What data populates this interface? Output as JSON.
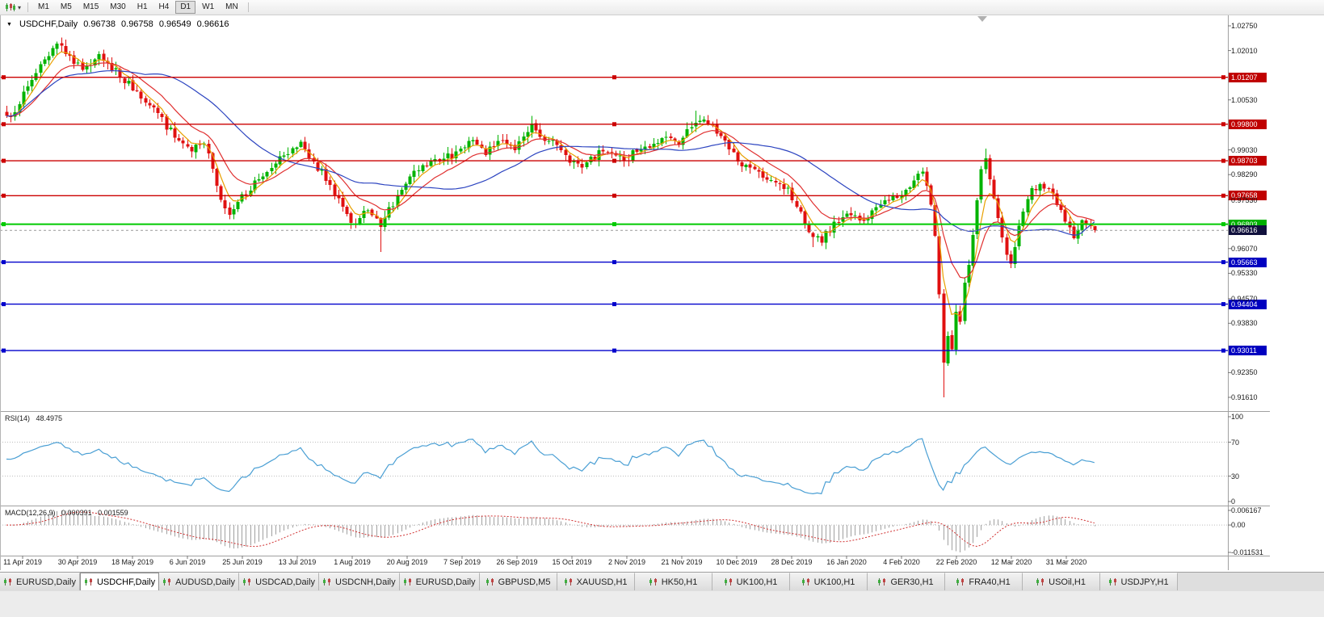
{
  "toolbar": {
    "timeframes": [
      "M1",
      "M5",
      "M15",
      "M30",
      "H1",
      "H4",
      "D1",
      "W1",
      "MN"
    ],
    "active_timeframe": "D1"
  },
  "chart": {
    "title_symbol": "USDCHF,Daily",
    "ohlc": {
      "open": "0.96738",
      "high": "0.96758",
      "low": "0.96549",
      "close": "0.96616"
    },
    "price_scale": {
      "min": 0.9127,
      "max": 1.0292,
      "ticks": [
        {
          "label": "1.02750",
          "value": 1.0275
        },
        {
          "label": "1.02010",
          "value": 1.0201
        },
        {
          "label": "1.00530",
          "value": 1.0053
        },
        {
          "label": "0.99030",
          "value": 0.9903
        },
        {
          "label": "0.98290",
          "value": 0.9829
        },
        {
          "label": "0.97530",
          "value": 0.9753
        },
        {
          "label": "0.96070",
          "value": 0.9607
        },
        {
          "label": "0.95330",
          "value": 0.9533
        },
        {
          "label": "0.94570",
          "value": 0.9457
        },
        {
          "label": "0.93830",
          "value": 0.9383
        },
        {
          "label": "0.92350",
          "value": 0.9235
        },
        {
          "label": "0.91610",
          "value": 0.9161
        }
      ]
    },
    "hlines": [
      {
        "label": "1.01207",
        "value": 1.01207,
        "color": "red"
      },
      {
        "label": "0.99800",
        "value": 0.998,
        "color": "red"
      },
      {
        "label": "0.98703",
        "value": 0.98703,
        "color": "red"
      },
      {
        "label": "0.97658",
        "value": 0.97658,
        "color": "red"
      },
      {
        "label": "0.96803",
        "value": 0.96803,
        "color": "green"
      },
      {
        "label": "0.95663",
        "value": 0.95663,
        "color": "blue"
      },
      {
        "label": "0.94404",
        "value": 0.94404,
        "color": "blue"
      },
      {
        "label": "0.93011",
        "value": 0.93011,
        "color": "blue"
      }
    ],
    "current_price": {
      "label": "0.96616",
      "value": 0.96616
    },
    "date_labels": [
      "11 Apr 2019",
      "30 Apr 2019",
      "18 May 2019",
      "6 Jun 2019",
      "25 Jun 2019",
      "13 Jul 2019",
      "1 Aug 2019",
      "20 Aug 2019",
      "7 Sep 2019",
      "26 Sep 2019",
      "15 Oct 2019",
      "2 Nov 2019",
      "21 Nov 2019",
      "10 Dec 2019",
      "28 Dec 2019",
      "16 Jan 2020",
      "4 Feb 2020",
      "22 Feb 2020",
      "12 Mar 2020",
      "31 Mar 2020"
    ],
    "series": {
      "candle_count": 260,
      "keypoints": [
        [
          0,
          1.0005
        ],
        [
          3,
          1.004
        ],
        [
          8,
          1.016
        ],
        [
          12,
          1.0222
        ],
        [
          15,
          1.0185
        ],
        [
          18,
          1.0143
        ],
        [
          22,
          1.019
        ],
        [
          27,
          1.012
        ],
        [
          31,
          1.008
        ],
        [
          35,
          1.003
        ],
        [
          40,
          0.994
        ],
        [
          44,
          0.9898
        ],
        [
          47,
          0.9923
        ],
        [
          50,
          0.9795
        ],
        [
          53,
          0.9708
        ],
        [
          56,
          0.977
        ],
        [
          60,
          0.9815
        ],
        [
          64,
          0.9862
        ],
        [
          67,
          0.989
        ],
        [
          70,
          0.9928
        ],
        [
          73,
          0.9868
        ],
        [
          77,
          0.9798
        ],
        [
          80,
          0.9732
        ],
        [
          83,
          0.968
        ],
        [
          86,
          0.9722
        ],
        [
          89,
          0.9672
        ],
        [
          93,
          0.9768
        ],
        [
          98,
          0.9842
        ],
        [
          103,
          0.9868
        ],
        [
          107,
          0.9898
        ],
        [
          111,
          0.9932
        ],
        [
          114,
          0.9888
        ],
        [
          118,
          0.9932
        ],
        [
          121,
          0.9902
        ],
        [
          125,
          0.9982
        ],
        [
          129,
          0.993
        ],
        [
          133,
          0.9888
        ],
        [
          137,
          0.985
        ],
        [
          142,
          0.9898
        ],
        [
          147,
          0.9872
        ],
        [
          151,
          0.9905
        ],
        [
          156,
          0.9938
        ],
        [
          160,
          0.9918
        ],
        [
          164,
          0.9985
        ],
        [
          168,
          0.9978
        ],
        [
          172,
          0.9905
        ],
        [
          174,
          0.9868
        ],
        [
          178,
          0.9845
        ],
        [
          182,
          0.9812
        ],
        [
          186,
          0.979
        ],
        [
          189,
          0.9718
        ],
        [
          192,
          0.9642
        ],
        [
          194,
          0.9625
        ],
        [
          197,
          0.9688
        ],
        [
          200,
          0.9712
        ],
        [
          204,
          0.969
        ],
        [
          208,
          0.9738
        ],
        [
          213,
          0.9768
        ],
        [
          218,
          0.9838
        ],
        [
          219,
          0.9795
        ],
        [
          220,
          0.9738
        ],
        [
          221,
          0.9645
        ],
        [
          222,
          0.947
        ],
        [
          223,
          0.9265
        ],
        [
          224,
          0.9345
        ],
        [
          225,
          0.9305
        ],
        [
          226,
          0.9418
        ],
        [
          227,
          0.9388
        ],
        [
          228,
          0.9505
        ],
        [
          229,
          0.9558
        ],
        [
          230,
          0.9648
        ],
        [
          231,
          0.9752
        ],
        [
          232,
          0.9845
        ],
        [
          233,
          0.9878
        ],
        [
          234,
          0.9815
        ],
        [
          235,
          0.9758
        ],
        [
          236,
          0.9698
        ],
        [
          237,
          0.964
        ],
        [
          238,
          0.9588
        ],
        [
          239,
          0.9562
        ],
        [
          240,
          0.9612
        ],
        [
          241,
          0.9675
        ],
        [
          242,
          0.9718
        ],
        [
          243,
          0.9755
        ],
        [
          244,
          0.9788
        ],
        [
          246,
          0.98
        ],
        [
          248,
          0.9788
        ],
        [
          250,
          0.9738
        ],
        [
          252,
          0.9688
        ],
        [
          254,
          0.9638
        ],
        [
          256,
          0.9692
        ],
        [
          258,
          0.9674
        ],
        [
          259,
          0.96616
        ]
      ],
      "wick_overrides": {
        "12": {
          "h": 1.0228
        },
        "53": {
          "l": 0.9695
        },
        "89": {
          "l": 0.9597
        },
        "125": {
          "h": 1.0005
        },
        "164": {
          "h": 1.0021
        },
        "192": {
          "l": 0.9612
        },
        "223": {
          "l": 0.9161
        },
        "233": {
          "h": 0.9907
        },
        "239": {
          "l": 0.9549
        },
        "259": {
          "o": 0.96738,
          "h": 0.96758,
          "l": 0.96549
        }
      }
    },
    "moving_averages": [
      {
        "name": "fast",
        "type": "ema",
        "period": 5,
        "color_key": "ma_fast"
      },
      {
        "name": "medium",
        "type": "ema",
        "period": 13,
        "color_key": "ma_mid"
      },
      {
        "name": "slow",
        "type": "sma",
        "period": 34,
        "color_key": "ma_slow"
      }
    ]
  },
  "rsi": {
    "title": "RSI(14)",
    "value": "48.4975",
    "period": 14,
    "levels": [
      {
        "label": "100",
        "value": 100
      },
      {
        "label": "70",
        "value": 70
      },
      {
        "label": "30",
        "value": 30
      },
      {
        "label": "0",
        "value": 0
      }
    ]
  },
  "macd": {
    "title": "MACD(12,26,9)",
    "value_main": "0.000391",
    "value_signal": "0.001559",
    "fast": 12,
    "slow": 26,
    "signal": 9,
    "scale": [
      {
        "label": "0.006167",
        "value": 0.006167
      },
      {
        "label": "0.00",
        "value": 0
      },
      {
        "label": "-0.011531",
        "value": -0.011531
      }
    ]
  },
  "tabs": {
    "items": [
      "EURUSD,Daily",
      "USDCHF,Daily",
      "AUDUSD,Daily",
      "USDCAD,Daily",
      "USDCNH,Daily",
      "EURUSD,Daily",
      "GBPUSD,M5",
      "XAUUSD,H1",
      "HK50,H1",
      "UK100,H1",
      "UK100,H1",
      "GER30,H1",
      "FRA40,H1",
      "USOil,H1",
      "USDJPY,H1"
    ],
    "active_index": 1
  },
  "colors": {
    "up": "#00b300",
    "down": "#e01010",
    "ma_fast": "#e8a000",
    "ma_mid": "#e03030",
    "ma_slow": "#2c44c0",
    "hline_red": "#cc0000",
    "hline_green": "#00ca00",
    "hline_blue": "#0000cc",
    "box_red": "#c00000",
    "box_green": "#00b000",
    "box_blue": "#0000c0",
    "box_current": "#11113d",
    "rsi_line": "#4a9fd4",
    "macd_hist": "#a0a0a0",
    "macd_signal": "#d03030"
  }
}
